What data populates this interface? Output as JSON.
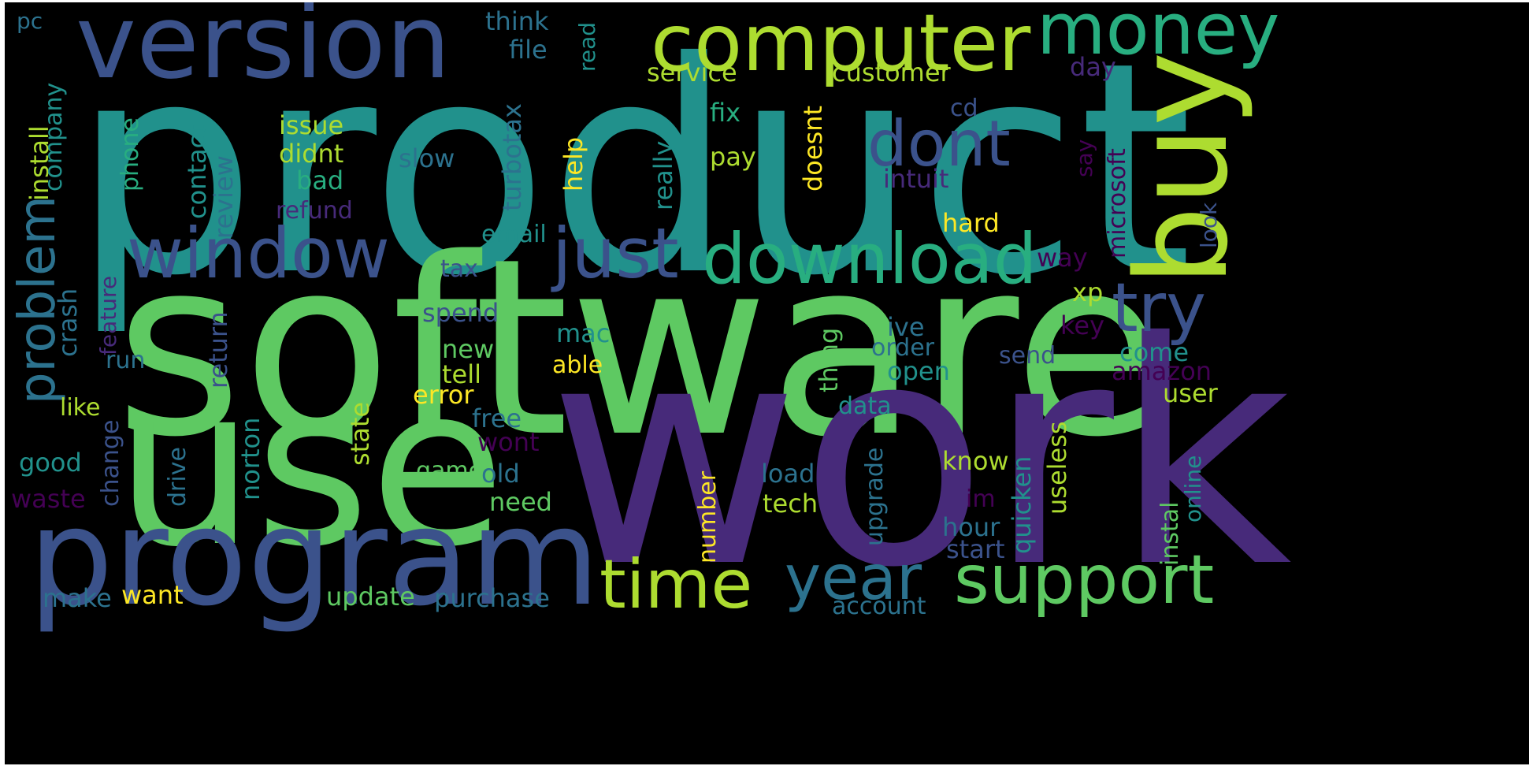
{
  "palette": {
    "p1": "#440154",
    "p2": "#472a7a",
    "p3": "#3b528b",
    "p4": "#2c728e",
    "p5": "#21918c",
    "p6": "#28ae80",
    "p7": "#5ec962",
    "p8": "#addc30",
    "p9": "#fde725"
  },
  "words": {
    "product": "product",
    "software": "software",
    "work": "work",
    "use": "use",
    "program": "program",
    "version": "version",
    "computer": "computer",
    "buy": "buy",
    "money": "money",
    "dont": "dont",
    "window": "window",
    "just": "just",
    "download": "download",
    "try": "try",
    "year": "year",
    "time": "time",
    "support": "support",
    "problem": "problem",
    "install": "install",
    "company": "company",
    "pc": "pc",
    "think": "think",
    "file": "file",
    "read": "read",
    "service": "service",
    "customer": "customer",
    "day": "day",
    "cd": "cd",
    "microsoft": "microsoft",
    "issue": "issue",
    "didnt": "didnt",
    "bad": "bad",
    "refund": "refund",
    "contact": "contact",
    "review": "review",
    "phone": "phone",
    "slow": "slow",
    "turbotax": "turbotax",
    "help": "help",
    "fix": "fix",
    "pay": "pay",
    "really": "really",
    "doesnt": "doesnt",
    "intuit": "intuit",
    "say": "say",
    "look": "look",
    "hard": "hard",
    "way": "way",
    "email": "email",
    "tax": "tax",
    "feature": "feature",
    "crash": "crash",
    "spend": "spend",
    "xp": "xp",
    "key": "key",
    "ive": "ive",
    "order": "order",
    "come": "come",
    "send": "send",
    "mac": "mac",
    "new": "new",
    "run": "run",
    "return": "return",
    "thing": "thing",
    "open": "open",
    "amazon": "amazon",
    "able": "able",
    "tell": "tell",
    "error": "error",
    "like": "like",
    "user": "user",
    "free": "free",
    "data": "data",
    "state": "state",
    "drive": "drive",
    "wont": "wont",
    "good": "good",
    "change": "change",
    "know": "know",
    "norton": "norton",
    "game": "game",
    "old": "old",
    "useless": "useless",
    "upgrade": "upgrade",
    "quicken": "quicken",
    "online": "online",
    "load": "load",
    "waste": "waste",
    "need": "need",
    "tech": "tech",
    "im": "im",
    "instal": "instal",
    "number": "number",
    "hour": "hour",
    "start": "start",
    "make": "make",
    "want": "want",
    "update": "update",
    "purchase": "purchase",
    "account": "account"
  }
}
